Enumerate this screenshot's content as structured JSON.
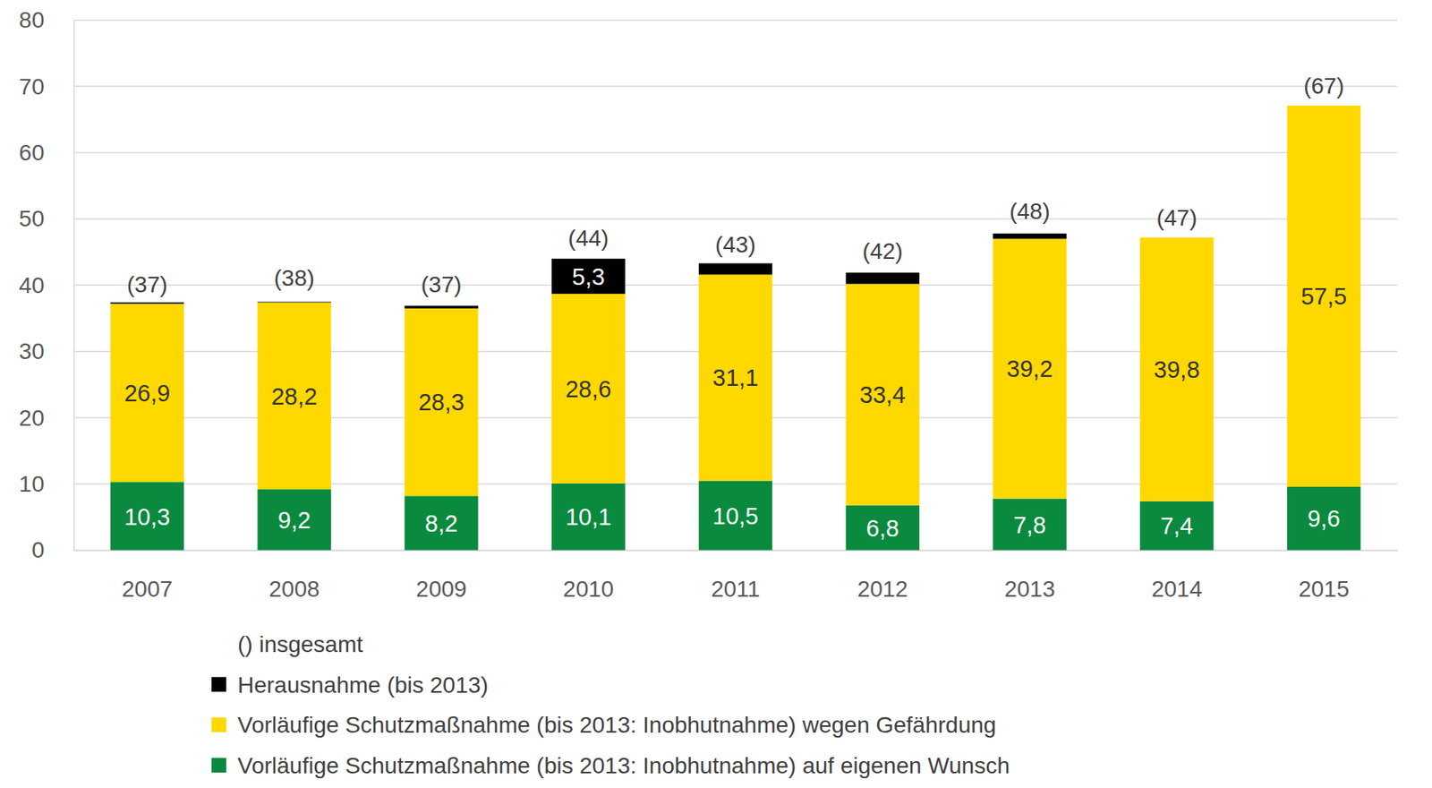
{
  "chart_data": {
    "type": "bar",
    "stacked": true,
    "data_labels": true,
    "grid": true,
    "legend": "bottom left",
    "categories": [
      "2007",
      "2008",
      "2009",
      "2010",
      "2011",
      "2012",
      "2013",
      "2014",
      "2015"
    ],
    "ylim": [
      0,
      80
    ],
    "yticks": [
      0,
      10,
      20,
      30,
      40,
      50,
      60,
      70,
      80
    ],
    "series": [
      {
        "name": "Vorläufige Schutzmaßnahme (bis 2013: Inobhutnahme) auf eigenen Wunsch",
        "color": "#0a8a3e",
        "values": [
          10.3,
          9.2,
          8.2,
          10.1,
          10.5,
          6.8,
          7.8,
          7.4,
          9.6
        ],
        "value_labels": [
          "10,3",
          "9,2",
          "8,2",
          "10,1",
          "10,5",
          "6,8",
          "7,8",
          "7,4",
          "9,6"
        ]
      },
      {
        "name": "Vorläufige Schutzmaßnahme (bis 2013: Inobhutnahme) wegen Gefährdung",
        "color": "#ffd800",
        "values": [
          26.9,
          28.2,
          28.3,
          28.6,
          31.1,
          33.4,
          39.2,
          39.8,
          57.5
        ],
        "value_labels": [
          "26,9",
          "28,2",
          "28,3",
          "28,6",
          "31,1",
          "33,4",
          "39,2",
          "39,8",
          "57,5"
        ]
      },
      {
        "name": "Herausnahme (bis 2013)",
        "color": "#000000",
        "values": [
          0.2,
          0.1,
          0.4,
          5.3,
          1.7,
          1.7,
          0.8,
          null,
          null
        ],
        "value_labels": [
          null,
          null,
          null,
          "5,3",
          null,
          null,
          null,
          null,
          null
        ]
      }
    ],
    "totals": [
      37,
      38,
      37,
      44,
      43,
      42,
      48,
      47,
      67
    ],
    "total_labels": [
      "(37)",
      "(38)",
      "(37)",
      "(44)",
      "(43)",
      "(42)",
      "(48)",
      "(47)",
      "(67)"
    ],
    "total_note": "() insgesamt"
  }
}
